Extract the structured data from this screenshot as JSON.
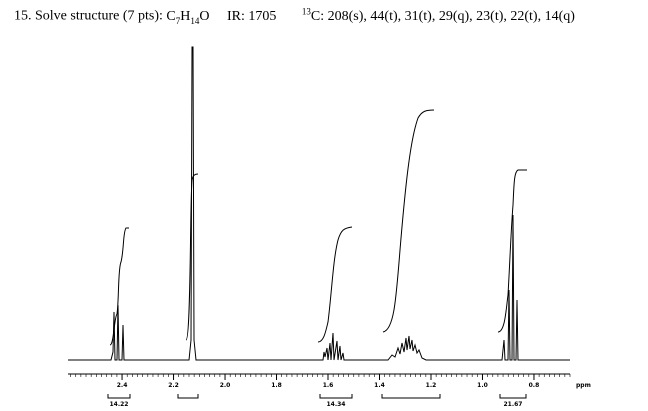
{
  "header": {
    "question": "15. Solve structure (7 pts): ",
    "formula": [
      "C",
      "7",
      "H",
      "14",
      "O"
    ],
    "ir": "IR: 1705",
    "c13_isotope": "13",
    "c13": "C: 208(s), 44(t), 31(t), 29(q), 23(t), 22(t), 14(q)"
  },
  "chart_data": {
    "type": "line",
    "x_label": "ppm",
    "xlim": [
      2.61,
      0.66
    ],
    "xticks": [
      2.4,
      2.2,
      {
        "value": 2.0,
        "label": "2.0"
      },
      1.8,
      1.6,
      1.4,
      1.2,
      {
        "value": 1.0,
        "label": "1.0"
      },
      0.8
    ],
    "integrals": [
      "14.22",
      "14.34",
      "21.67"
    ]
  }
}
